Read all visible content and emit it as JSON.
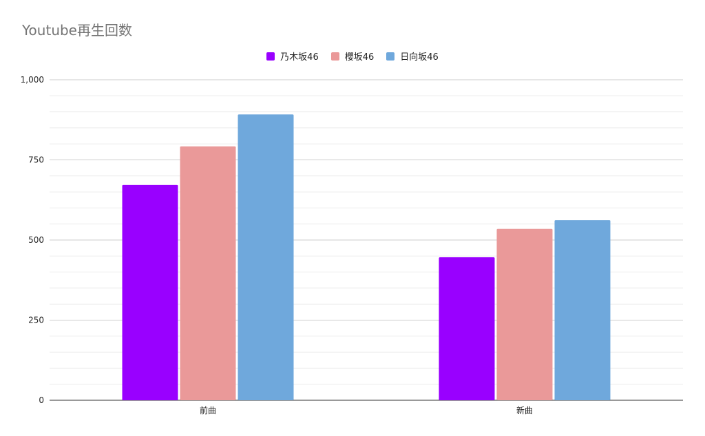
{
  "chart_data": {
    "type": "bar",
    "title": "Youtube再生回数",
    "categories": [
      "前曲",
      "新曲"
    ],
    "series": [
      {
        "name": "乃木坂46",
        "values": [
          672,
          446
        ],
        "color": "#9900ff"
      },
      {
        "name": "櫻坂46",
        "values": [
          792,
          535
        ],
        "color": "#ea9999"
      },
      {
        "name": "日向坂46",
        "values": [
          892,
          562
        ],
        "color": "#6fa8dc"
      }
    ],
    "ylim": [
      0,
      1000
    ],
    "yticks": [
      0,
      250,
      500,
      750,
      1000
    ],
    "ytick_labels": [
      "0",
      "250",
      "500",
      "750",
      "1,000"
    ],
    "xlabel": "",
    "ylabel": "",
    "legend_position": "top-center",
    "grid": true
  }
}
